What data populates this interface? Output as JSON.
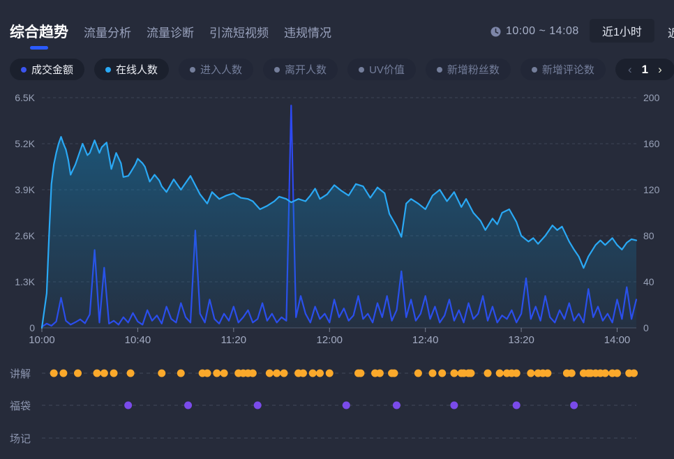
{
  "header": {
    "tabs": [
      "综合趋势",
      "流量分析",
      "流量诊断",
      "引流短视频",
      "违规情况"
    ],
    "active_tab": "综合趋势",
    "time_range": "10:00 ~ 14:08",
    "range_selected": "近1小时",
    "range_next_partial": "近"
  },
  "metrics": [
    {
      "label": "成交金额",
      "dot_color": "#3b55f0",
      "active": true
    },
    {
      "label": "在线人数",
      "dot_color": "#2aa9f5",
      "active": true
    },
    {
      "label": "进入人数",
      "dot_color": "#747e9b",
      "active": false
    },
    {
      "label": "离开人数",
      "dot_color": "#747e9b",
      "active": false
    },
    {
      "label": "UV价值",
      "dot_color": "#747e9b",
      "active": false
    },
    {
      "label": "新增粉丝数",
      "dot_color": "#747e9b",
      "active": false
    },
    {
      "label": "新增评论数",
      "dot_color": "#747e9b",
      "active": false
    }
  ],
  "pagination": {
    "prev": "‹",
    "page": "1",
    "next": "›"
  },
  "chart_data": {
    "type": "line",
    "x": {
      "ticks": [
        "10:00",
        "10:40",
        "11:20",
        "12:00",
        "12:40",
        "13:20",
        "14:00"
      ],
      "start": "10:00",
      "end": "14:08",
      "duration_min": 248,
      "tick_every_min": 40
    },
    "y_left": {
      "series": "成交金额",
      "ticks": [
        "6.5K",
        "5.2K",
        "3.9K",
        "2.6K",
        "1.3K",
        "0"
      ],
      "max": 6500,
      "min": 0
    },
    "y_right": {
      "series": "在线人数",
      "ticks": [
        "200",
        "160",
        "120",
        "80",
        "40",
        "0"
      ],
      "max": 200,
      "min": 0
    },
    "grid": "horizontal-dashed",
    "legend_position": "top-pills",
    "series": [
      {
        "name": "成交金额",
        "axis": "left",
        "color": "#2d49f0",
        "style": "line",
        "points": [
          [
            0,
            30
          ],
          [
            2,
            120
          ],
          [
            4,
            60
          ],
          [
            6,
            180
          ],
          [
            8,
            850
          ],
          [
            10,
            200
          ],
          [
            12,
            90
          ],
          [
            14,
            160
          ],
          [
            16,
            240
          ],
          [
            18,
            130
          ],
          [
            20,
            380
          ],
          [
            22,
            2200
          ],
          [
            24,
            150
          ],
          [
            26,
            1700
          ],
          [
            28,
            120
          ],
          [
            30,
            200
          ],
          [
            32,
            90
          ],
          [
            34,
            300
          ],
          [
            36,
            150
          ],
          [
            38,
            420
          ],
          [
            40,
            180
          ],
          [
            42,
            90
          ],
          [
            44,
            500
          ],
          [
            46,
            200
          ],
          [
            48,
            350
          ],
          [
            50,
            120
          ],
          [
            52,
            600
          ],
          [
            54,
            250
          ],
          [
            56,
            150
          ],
          [
            58,
            700
          ],
          [
            60,
            300
          ],
          [
            62,
            150
          ],
          [
            64,
            2750
          ],
          [
            66,
            400
          ],
          [
            68,
            150
          ],
          [
            70,
            800
          ],
          [
            72,
            250
          ],
          [
            74,
            120
          ],
          [
            76,
            400
          ],
          [
            78,
            200
          ],
          [
            80,
            600
          ],
          [
            82,
            150
          ],
          [
            84,
            300
          ],
          [
            86,
            500
          ],
          [
            88,
            150
          ],
          [
            90,
            250
          ],
          [
            92,
            700
          ],
          [
            94,
            200
          ],
          [
            96,
            400
          ],
          [
            98,
            150
          ],
          [
            100,
            300
          ],
          [
            102,
            200
          ],
          [
            104,
            6280
          ],
          [
            106,
            300
          ],
          [
            108,
            900
          ],
          [
            110,
            400
          ],
          [
            112,
            150
          ],
          [
            114,
            600
          ],
          [
            116,
            250
          ],
          [
            118,
            400
          ],
          [
            120,
            150
          ],
          [
            122,
            800
          ],
          [
            124,
            300
          ],
          [
            126,
            550
          ],
          [
            128,
            200
          ],
          [
            130,
            350
          ],
          [
            132,
            900
          ],
          [
            134,
            250
          ],
          [
            136,
            400
          ],
          [
            138,
            150
          ],
          [
            140,
            700
          ],
          [
            142,
            300
          ],
          [
            144,
            900
          ],
          [
            146,
            200
          ],
          [
            148,
            500
          ],
          [
            150,
            1600
          ],
          [
            152,
            300
          ],
          [
            154,
            800
          ],
          [
            156,
            200
          ],
          [
            158,
            400
          ],
          [
            160,
            900
          ],
          [
            162,
            250
          ],
          [
            164,
            600
          ],
          [
            166,
            150
          ],
          [
            168,
            350
          ],
          [
            170,
            800
          ],
          [
            172,
            200
          ],
          [
            174,
            500
          ],
          [
            176,
            150
          ],
          [
            178,
            700
          ],
          [
            180,
            250
          ],
          [
            182,
            400
          ],
          [
            184,
            900
          ],
          [
            186,
            200
          ],
          [
            188,
            600
          ],
          [
            190,
            150
          ],
          [
            192,
            350
          ],
          [
            194,
            250
          ],
          [
            196,
            500
          ],
          [
            198,
            150
          ],
          [
            200,
            400
          ],
          [
            202,
            1400
          ],
          [
            204,
            250
          ],
          [
            206,
            600
          ],
          [
            208,
            200
          ],
          [
            210,
            900
          ],
          [
            212,
            300
          ],
          [
            214,
            150
          ],
          [
            216,
            500
          ],
          [
            218,
            250
          ],
          [
            220,
            700
          ],
          [
            222,
            200
          ],
          [
            224,
            400
          ],
          [
            226,
            150
          ],
          [
            228,
            1100
          ],
          [
            230,
            300
          ],
          [
            232,
            600
          ],
          [
            234,
            200
          ],
          [
            236,
            400
          ],
          [
            238,
            150
          ],
          [
            240,
            800
          ],
          [
            242,
            250
          ],
          [
            244,
            1150
          ],
          [
            246,
            250
          ],
          [
            248,
            800
          ]
        ]
      },
      {
        "name": "在线人数",
        "axis": "right",
        "color": "#2aa9f5",
        "style": "area-line",
        "area_from": "rgba(16,134,192,0.52)",
        "area_to": "rgba(16,134,192,0.06)",
        "points": [
          [
            0,
            0
          ],
          [
            2,
            30
          ],
          [
            3,
            80
          ],
          [
            4,
            125
          ],
          [
            5,
            142
          ],
          [
            6,
            152
          ],
          [
            7,
            160
          ],
          [
            8,
            166
          ],
          [
            9,
            160
          ],
          [
            10,
            155
          ],
          [
            11,
            146
          ],
          [
            12,
            133
          ],
          [
            14,
            142
          ],
          [
            15,
            148
          ],
          [
            17,
            160
          ],
          [
            19,
            150
          ],
          [
            20,
            152
          ],
          [
            22,
            163
          ],
          [
            24,
            152
          ],
          [
            25,
            157
          ],
          [
            27,
            161
          ],
          [
            29,
            138
          ],
          [
            31,
            152
          ],
          [
            33,
            143
          ],
          [
            34,
            131
          ],
          [
            36,
            132
          ],
          [
            37,
            135
          ],
          [
            39,
            142
          ],
          [
            40,
            147
          ],
          [
            42,
            143
          ],
          [
            43,
            140
          ],
          [
            45,
            127
          ],
          [
            47,
            133
          ],
          [
            49,
            128
          ],
          [
            50,
            123
          ],
          [
            52,
            118
          ],
          [
            55,
            129
          ],
          [
            58,
            120
          ],
          [
            60,
            126
          ],
          [
            62,
            132
          ],
          [
            63,
            128
          ],
          [
            66,
            116
          ],
          [
            69,
            108
          ],
          [
            71,
            118
          ],
          [
            74,
            112
          ],
          [
            77,
            115
          ],
          [
            80,
            117
          ],
          [
            83,
            113
          ],
          [
            86,
            112
          ],
          [
            88,
            110
          ],
          [
            91,
            103
          ],
          [
            94,
            106
          ],
          [
            97,
            110
          ],
          [
            99,
            114
          ],
          [
            102,
            112
          ],
          [
            104,
            109
          ],
          [
            107,
            112
          ],
          [
            110,
            110
          ],
          [
            112,
            115
          ],
          [
            114,
            121
          ],
          [
            116,
            112
          ],
          [
            119,
            116
          ],
          [
            122,
            124
          ],
          [
            125,
            119
          ],
          [
            128,
            115
          ],
          [
            131,
            125
          ],
          [
            134,
            123
          ],
          [
            137,
            113
          ],
          [
            140,
            122
          ],
          [
            143,
            117
          ],
          [
            145,
            99
          ],
          [
            148,
            88
          ],
          [
            150,
            79
          ],
          [
            152,
            108
          ],
          [
            154,
            112
          ],
          [
            157,
            108
          ],
          [
            160,
            103
          ],
          [
            163,
            115
          ],
          [
            166,
            120
          ],
          [
            169,
            110
          ],
          [
            172,
            118
          ],
          [
            175,
            105
          ],
          [
            177,
            112
          ],
          [
            180,
            100
          ],
          [
            183,
            93
          ],
          [
            185,
            85
          ],
          [
            188,
            95
          ],
          [
            190,
            90
          ],
          [
            192,
            100
          ],
          [
            195,
            103
          ],
          [
            198,
            92
          ],
          [
            200,
            80
          ],
          [
            203,
            75
          ],
          [
            205,
            78
          ],
          [
            207,
            73
          ],
          [
            210,
            80
          ],
          [
            213,
            89
          ],
          [
            215,
            85
          ],
          [
            217,
            88
          ],
          [
            220,
            75
          ],
          [
            222,
            68
          ],
          [
            224,
            62
          ],
          [
            226,
            52
          ],
          [
            228,
            62
          ],
          [
            231,
            72
          ],
          [
            233,
            76
          ],
          [
            235,
            72
          ],
          [
            238,
            78
          ],
          [
            240,
            72
          ],
          [
            242,
            68
          ],
          [
            244,
            74
          ],
          [
            246,
            77
          ],
          [
            248,
            76
          ]
        ]
      }
    ]
  },
  "event_rows": [
    {
      "label": "讲解",
      "color": "#fba92b",
      "dots_min": [
        5,
        9,
        15,
        23,
        26,
        30,
        37,
        50,
        58,
        67,
        69,
        73,
        76,
        82,
        84,
        86,
        88,
        95,
        98,
        101,
        107,
        109,
        113,
        116,
        120,
        132,
        133,
        139,
        141,
        146,
        147,
        157,
        163,
        167,
        172,
        175,
        176,
        178,
        179,
        186,
        191,
        194,
        196,
        198,
        204,
        207,
        209,
        211,
        219,
        221,
        226,
        228,
        229,
        231,
        233,
        235,
        238,
        240,
        245,
        247
      ]
    },
    {
      "label": "福袋",
      "color": "#7a4bea",
      "dots_min": [
        36,
        61,
        90,
        127,
        148,
        172,
        198,
        222
      ]
    },
    {
      "label": "场记",
      "color": "#8b94ae",
      "dots_min": []
    }
  ]
}
